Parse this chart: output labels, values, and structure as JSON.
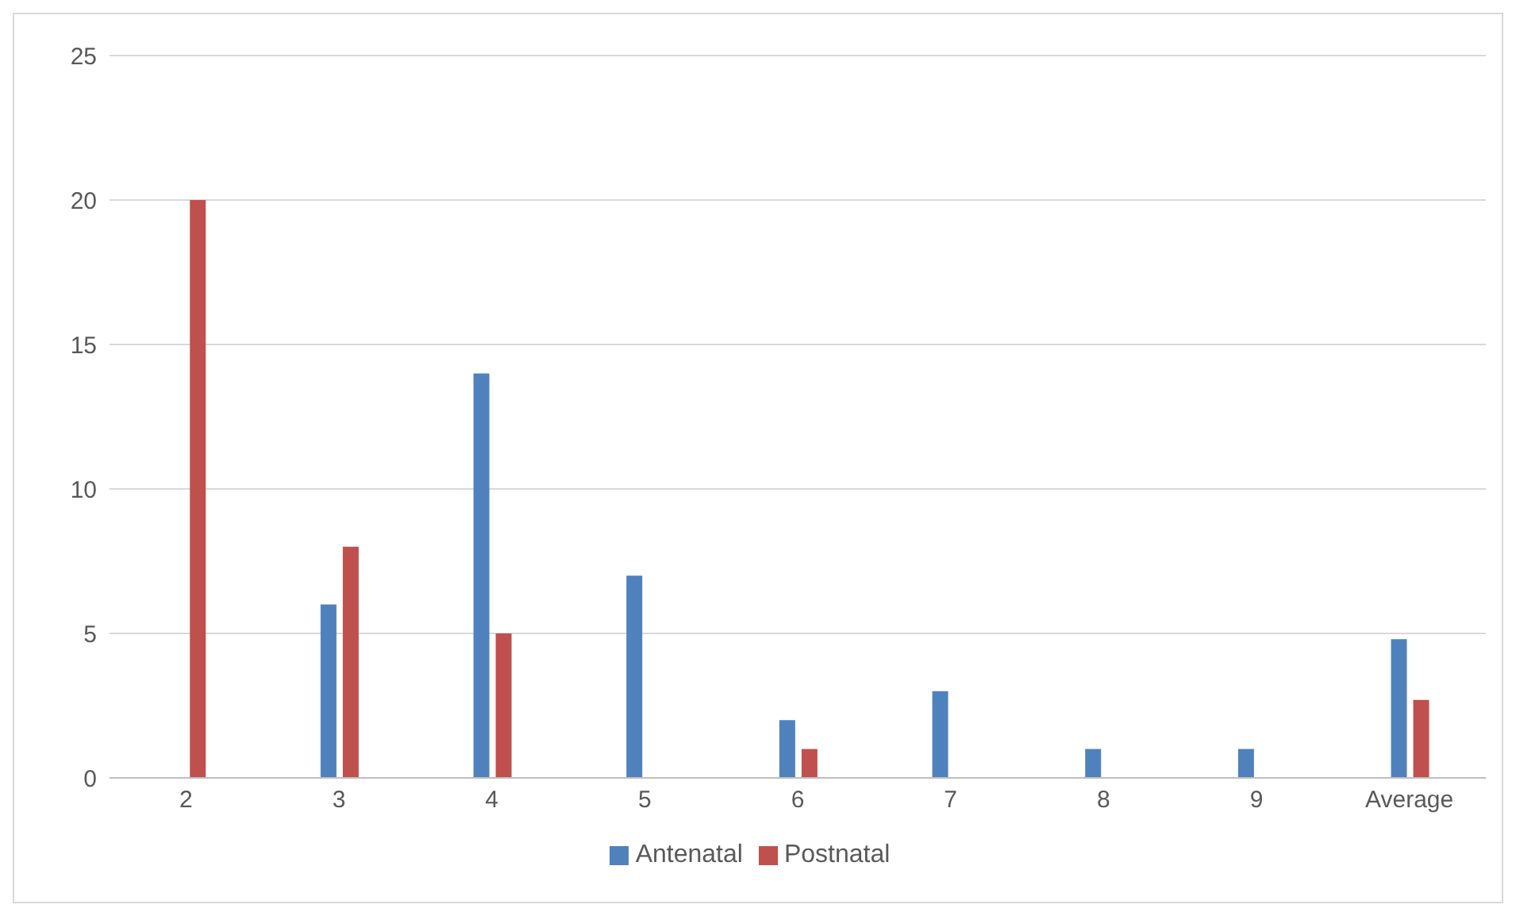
{
  "chart_data": {
    "type": "bar",
    "categories": [
      "2",
      "3",
      "4",
      "5",
      "6",
      "7",
      "8",
      "9",
      "Average"
    ],
    "series": [
      {
        "name": "Antenatal",
        "color": "#4f81bd",
        "values": [
          0,
          6,
          14,
          7,
          2,
          3,
          1,
          1,
          4.8
        ]
      },
      {
        "name": "Postnatal",
        "color": "#c0504d",
        "values": [
          20,
          8,
          5,
          0,
          1,
          0,
          0,
          0,
          2.7
        ]
      }
    ],
    "ylim": [
      0,
      25
    ],
    "yticks": [
      0,
      5,
      10,
      15,
      20,
      25
    ],
    "grid": "y",
    "legend": "bottom"
  }
}
